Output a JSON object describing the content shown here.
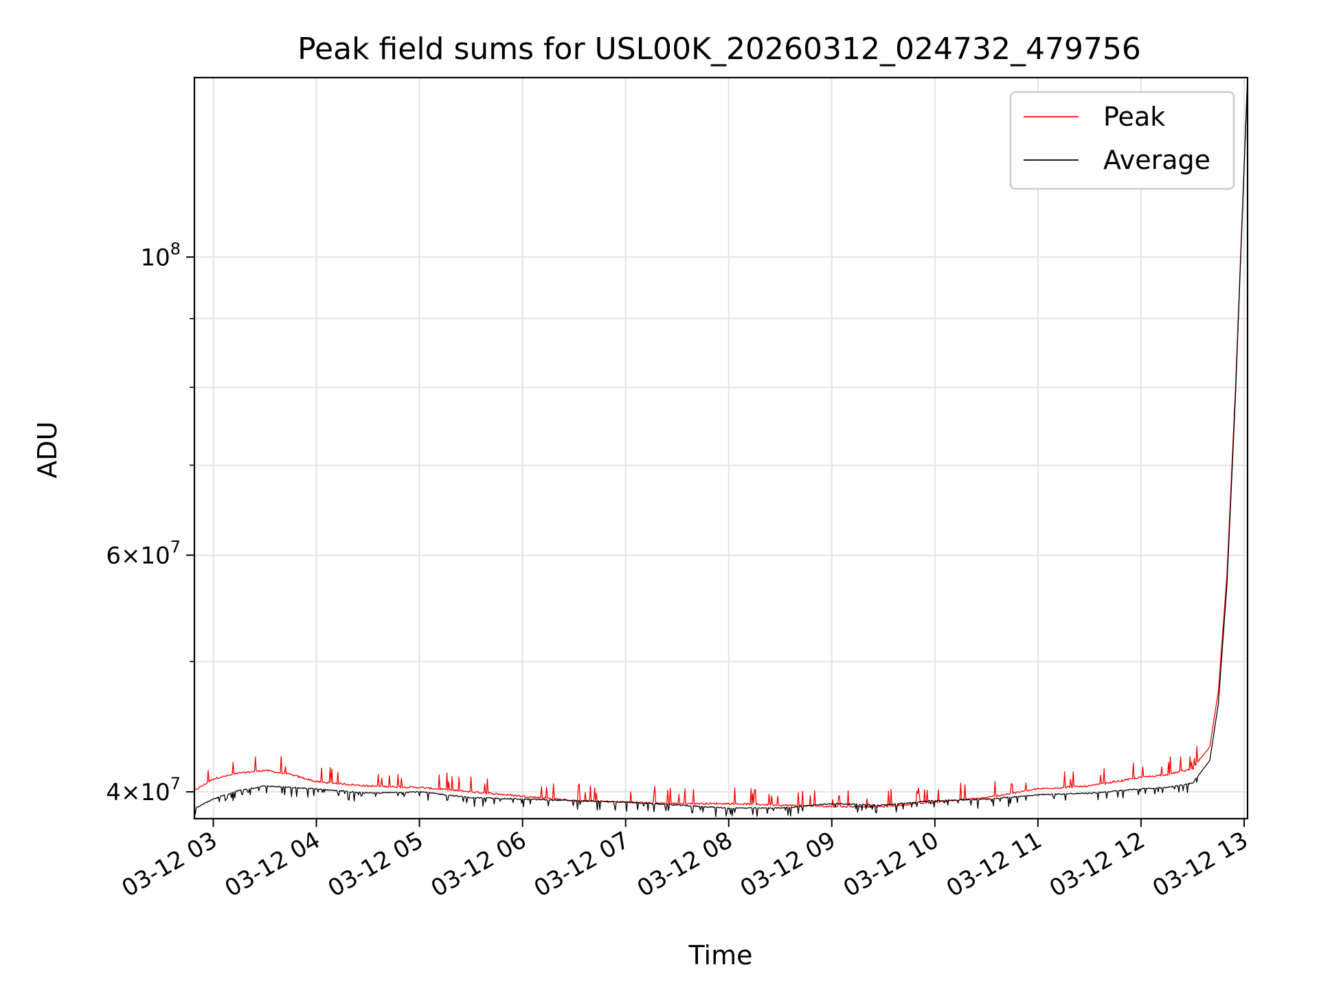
{
  "chart_data": {
    "type": "line",
    "title": "Peak field sums for USL00K_20260312_024732_479756",
    "xlabel": "Time",
    "ylabel": "ADU",
    "yscale": "log",
    "xlim": [
      "03-12 02:49",
      "03-12 13:02"
    ],
    "ylim": [
      38200000,
      136000000
    ],
    "grid": true,
    "legend_placement": "top-right",
    "x_ticks": [
      "03-12 03",
      "03-12 04",
      "03-12 05",
      "03-12 06",
      "03-12 07",
      "03-12 08",
      "03-12 09",
      "03-12 10",
      "03-12 11",
      "03-12 12",
      "03-12 13"
    ],
    "y_ticks": [
      {
        "value": 40000000,
        "mantissa": "4",
        "exponent": "7"
      },
      {
        "value": 60000000,
        "mantissa": "6",
        "exponent": "7"
      },
      {
        "value": 100000000,
        "mantissa": "10",
        "exponent": "8"
      }
    ],
    "y_minor_ticks": [
      50000000,
      70000000,
      80000000,
      90000000
    ],
    "series": [
      {
        "name": "Peak",
        "color": "#ff0000",
        "x": [
          "03-12 02:48",
          "03-12 03:00",
          "03-12 03:15",
          "03-12 03:30",
          "03-12 03:45",
          "03-12 04:00",
          "03-12 04:30",
          "03-12 05:00",
          "03-12 05:30",
          "03-12 06:00",
          "03-12 06:30",
          "03-12 07:00",
          "03-12 07:30",
          "03-12 08:00",
          "03-12 08:30",
          "03-12 09:00",
          "03-12 09:30",
          "03-12 10:00",
          "03-12 10:30",
          "03-12 11:00",
          "03-12 11:30",
          "03-12 12:00",
          "03-12 12:15",
          "03-12 12:30",
          "03-12 12:40",
          "03-12 12:45",
          "03-12 12:50",
          "03-12 12:55",
          "03-12 13:02"
        ],
        "values": [
          40000000,
          40900000,
          41300000,
          41500000,
          41200000,
          40700000,
          40400000,
          40300000,
          40000000,
          39700000,
          39400000,
          39300000,
          39200000,
          39200000,
          39100000,
          39000000,
          39000000,
          39300000,
          39600000,
          40200000,
          40400000,
          41000000,
          41200000,
          41600000,
          43200000,
          47500000,
          58000000,
          80000000,
          136000000
        ]
      },
      {
        "name": "Average",
        "color": "#000000",
        "x": [
          "03-12 02:48",
          "03-12 03:00",
          "03-12 03:15",
          "03-12 03:30",
          "03-12 03:45",
          "03-12 04:00",
          "03-12 04:30",
          "03-12 05:00",
          "03-12 05:30",
          "03-12 06:00",
          "03-12 06:30",
          "03-12 07:00",
          "03-12 07:30",
          "03-12 08:00",
          "03-12 08:30",
          "03-12 09:00",
          "03-12 09:30",
          "03-12 10:00",
          "03-12 10:30",
          "03-12 11:00",
          "03-12 11:30",
          "03-12 12:00",
          "03-12 12:15",
          "03-12 12:30",
          "03-12 12:40",
          "03-12 12:45",
          "03-12 12:50",
          "03-12 12:55",
          "03-12 13:02"
        ],
        "values": [
          38800000,
          39500000,
          40100000,
          40400000,
          40300000,
          40200000,
          39900000,
          40000000,
          39600000,
          39500000,
          39400000,
          39300000,
          39100000,
          38900000,
          38900000,
          39200000,
          39100000,
          39400000,
          39500000,
          39800000,
          39900000,
          40200000,
          40300000,
          40600000,
          42200000,
          46500000,
          57000000,
          79000000,
          136000000
        ]
      }
    ]
  }
}
